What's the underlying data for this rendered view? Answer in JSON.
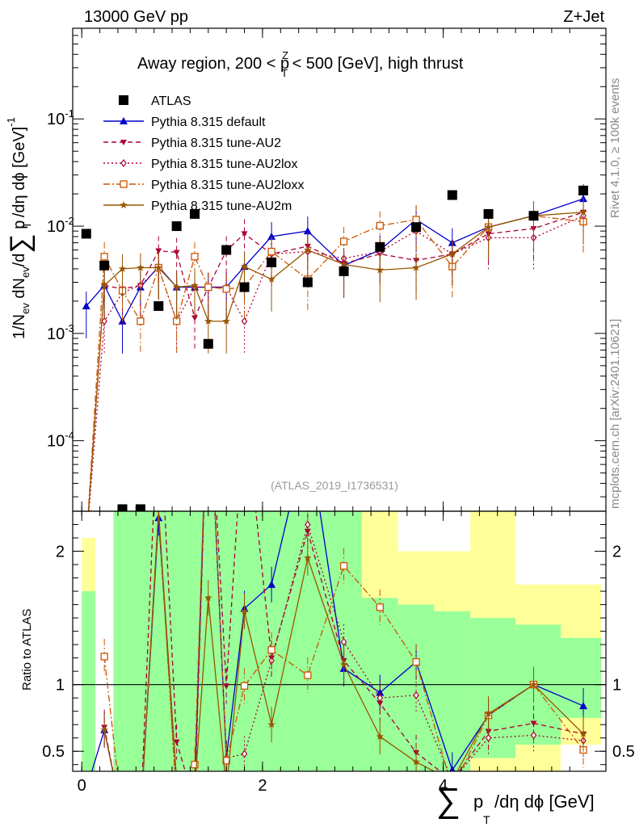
{
  "header": {
    "left": "13000 GeV pp",
    "right": "Z+Jet",
    "title_pre": "Away region, 200 < p",
    "title_sup": "Z",
    "title_sub": "T",
    "title_post": " < 500 [GeV], high thrust"
  },
  "side_labels": {
    "rivet": "Rivet 4.1.0, ≥ 100k events",
    "mcplots": "mcplots.cern.ch [arXiv:2401.10621]"
  },
  "analysis_id": "(ATLAS_2019_I1736531)",
  "axis": {
    "y_top": "1/N",
    "y_top_sub_ev": "ev",
    "y_top_mid": " dN",
    "y_top_mid2": "/d",
    "y_top_sum": "∑",
    "y_top_p": " p",
    "y_top_T": "T",
    "y_top_tail": " /dη dϕ  [GeV]",
    "y_top_exp": "-1",
    "y_bottom": "Ratio to ATLAS",
    "x_sum": "∑",
    "x_p": "p",
    "x_T": "T",
    "x_tail": "/dη dϕ [GeV]"
  },
  "legend": [
    {
      "label": "ATLAS",
      "color": "#000000",
      "marker": "square-filled",
      "line": "none"
    },
    {
      "label": "Pythia 8.315 default",
      "color": "#0000cc",
      "marker": "triangle-filled",
      "line": "solid"
    },
    {
      "label": "Pythia 8.315 tune-AU2",
      "color": "#aa0033",
      "marker": "triangle-down-filled",
      "line": "dashed"
    },
    {
      "label": "Pythia 8.315 tune-AU2lox",
      "color": "#aa0033",
      "marker": "diamond-open",
      "line": "dotted"
    },
    {
      "label": "Pythia 8.315 tune-AU2loxx",
      "color": "#cc5500",
      "marker": "square-open",
      "line": "dashdot"
    },
    {
      "label": "Pythia 8.315 tune-AU2m",
      "color": "#995500",
      "marker": "star",
      "line": "solid"
    }
  ],
  "chart_data": {
    "type": "line",
    "title": "Away region, 200 < pT^Z < 500 [GeV], high thrust",
    "x_label": "sum pT / d eta d phi [GeV]",
    "y_label": "1/Nev dNev/d sum pT /d eta d phi [GeV]^-1",
    "y_scale": "log",
    "x_range": [
      -0.1,
      5.8
    ],
    "y_range": [
      2.2e-05,
      0.7
    ],
    "x_ticks": [
      0,
      2,
      4
    ],
    "y_ticks": [
      {
        "value": 0.1,
        "base": "10",
        "exp": "-1"
      },
      {
        "value": 0.01,
        "base": "10",
        "exp": "-2"
      },
      {
        "value": 0.001,
        "base": "10",
        "exp": "-3"
      },
      {
        "value": 0.0001,
        "base": "10",
        "exp": "-4"
      }
    ],
    "ratio_range": [
      0.35,
      2.3
    ],
    "ratio_ticks": [
      0.5,
      1,
      2
    ],
    "x": [
      0.05,
      0.25,
      0.45,
      0.65,
      0.85,
      1.05,
      1.25,
      1.4,
      1.6,
      1.8,
      2.1,
      2.5,
      2.9,
      3.3,
      3.7,
      4.1,
      4.5,
      5.0,
      5.55
    ],
    "atlas": [
      0.0085,
      0.0043,
      2.3e-05,
      2.3e-05,
      0.0018,
      0.01,
      0.013,
      0.0008,
      0.006,
      0.0027,
      0.0046,
      0.003,
      0.0038,
      0.0064,
      0.0098,
      0.0195,
      0.013,
      0.0125,
      0.0215
    ],
    "series": [
      {
        "name": "Pythia 8.315 default",
        "values": [
          0.0018,
          0.0028,
          0.0013,
          0.0027,
          0.0042,
          0.0027,
          0.0027,
          0.0027,
          0.0027,
          0.0042,
          0.008,
          0.009,
          0.0043,
          0.006,
          0.0115,
          0.007,
          0.0098,
          0.0125,
          0.018
        ],
        "ratio": [
          0.21,
          0.66,
          0.0,
          0.0,
          2.25,
          0.27,
          0.21,
          3.4,
          0.45,
          1.57,
          1.75,
          2.9,
          1.12,
          0.94,
          1.17,
          0.36,
          0.77,
          1.0,
          0.84
        ]
      },
      {
        "name": "Pythia 8.315 tune-AU2",
        "values": [
          0.0,
          0.0028,
          0.0026,
          0.0028,
          0.0059,
          0.0057,
          0.0014,
          0.0027,
          0.0059,
          0.0085,
          0.0055,
          0.0065,
          0.0045,
          0.0055,
          0.0048,
          0.0055,
          0.0085,
          0.0095,
          0.0135
        ],
        "ratio": [
          0.0,
          0.68,
          0.0,
          0.0,
          3.2,
          0.57,
          0.11,
          3.4,
          0.99,
          3.1,
          1.2,
          2.15,
          1.18,
          0.86,
          0.49,
          0.28,
          0.65,
          0.71,
          0.63
        ]
      },
      {
        "name": "Pythia 8.315 tune-AU2lox",
        "values": [
          0.0,
          0.0013,
          0.0024,
          0.0028,
          0.0041,
          0.0013,
          0.0027,
          0.0027,
          0.0027,
          0.0013,
          0.0055,
          0.0058,
          0.005,
          0.0058,
          0.009,
          0.0055,
          0.0078,
          0.0078,
          0.0125
        ],
        "ratio": [
          0.0,
          0.3,
          0.0,
          0.0,
          2.3,
          0.13,
          0.21,
          3.4,
          0.45,
          0.48,
          1.18,
          2.2,
          1.32,
          0.9,
          0.92,
          0.28,
          0.6,
          0.62,
          0.58
        ]
      },
      {
        "name": "Pythia 8.315 tune-AU2loxx",
        "values": [
          0.0,
          0.0052,
          0.0025,
          0.0013,
          0.0041,
          0.0013,
          0.0052,
          0.0027,
          0.0026,
          0.0027,
          0.0058,
          0.0032,
          0.0072,
          0.0101,
          0.0115,
          0.0042,
          0.0098,
          0.0125,
          0.011
        ],
        "ratio": [
          0.0,
          1.21,
          0.0,
          0.0,
          2.3,
          0.13,
          0.4,
          3.4,
          0.43,
          0.99,
          1.26,
          1.07,
          1.89,
          1.58,
          1.17,
          0.22,
          0.77,
          1.0,
          0.51
        ]
      },
      {
        "name": "Pythia 8.315 tune-AU2m",
        "values": [
          0.0,
          0.0028,
          0.004,
          0.0041,
          0.0041,
          0.0027,
          0.0028,
          0.0013,
          0.0013,
          0.0042,
          0.0032,
          0.006,
          0.0044,
          0.0039,
          0.0041,
          0.0055,
          0.0098,
          0.0125,
          0.0135
        ],
        "ratio": [
          0.0,
          0.66,
          0.0,
          0.0,
          2.3,
          0.27,
          0.21,
          1.65,
          0.22,
          1.55,
          0.7,
          1.95,
          1.15,
          0.61,
          0.42,
          0.28,
          0.78,
          1.0,
          0.63
        ]
      }
    ]
  }
}
